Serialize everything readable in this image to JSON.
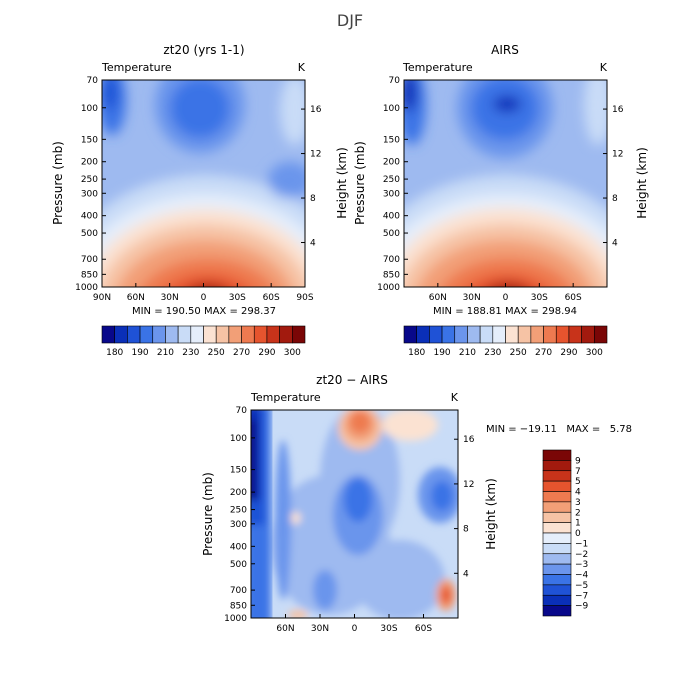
{
  "figure": {
    "title": "DJF"
  },
  "chart_data": [
    {
      "type": "heatmap",
      "id": "model",
      "title": "zt20 (yrs 1-1)",
      "subtitle_left": "Temperature",
      "subtitle_right": "K",
      "ylabel": "Pressure (mb)",
      "ylabel_right": "Height (km)",
      "x_ticks": [
        "90N",
        "60N",
        "30N",
        "0",
        "30S",
        "60S",
        "90S"
      ],
      "y_ticks": [
        "70",
        "100",
        "150",
        "200",
        "250",
        "300",
        "400",
        "500",
        "700",
        "850",
        "1000"
      ],
      "y_ticks_right": [
        "16",
        "12",
        "8",
        "4"
      ],
      "stats_text": "MIN = 190.50   MAX = 298.37",
      "min": 190.5,
      "max": 298.37,
      "colorbar_labels": [
        "180",
        "190",
        "210",
        "230",
        "250",
        "270",
        "290",
        "300"
      ]
    },
    {
      "type": "heatmap",
      "id": "obs",
      "title": "AIRS",
      "subtitle_left": "Temperature",
      "subtitle_right": "K",
      "ylabel": "Pressure (mb)",
      "ylabel_right": "Height (km)",
      "x_ticks": [
        "60N",
        "30N",
        "0",
        "30S",
        "60S"
      ],
      "y_ticks": [
        "70",
        "100",
        "150",
        "200",
        "250",
        "300",
        "400",
        "500",
        "700",
        "850",
        "1000"
      ],
      "y_ticks_right": [
        "16",
        "12",
        "8",
        "4"
      ],
      "stats_text": "MIN = 188.81   MAX = 298.94",
      "min": 188.81,
      "max": 298.94,
      "colorbar_labels": [
        "180",
        "190",
        "210",
        "230",
        "250",
        "270",
        "290",
        "300"
      ]
    },
    {
      "type": "heatmap",
      "id": "diff",
      "title": "zt20 − AIRS",
      "subtitle_left": "Temperature",
      "subtitle_right": "K",
      "ylabel": "Pressure (mb)",
      "ylabel_right": "Height (km)",
      "x_ticks": [
        "60N",
        "30N",
        "0",
        "30S",
        "60S"
      ],
      "y_ticks": [
        "70",
        "100",
        "150",
        "200",
        "250",
        "300",
        "400",
        "500",
        "700",
        "850",
        "1000"
      ],
      "y_ticks_right": [
        "16",
        "12",
        "8",
        "4"
      ],
      "stats_text": "MIN = −19.11   MAX =   5.78",
      "min": -19.11,
      "max": 5.78,
      "colorbar_labels": [
        "9",
        "7",
        "5",
        "4",
        "3",
        "2",
        "1",
        "0",
        "−1",
        "−2",
        "−3",
        "−4",
        "−5",
        "−7",
        "−9"
      ]
    }
  ],
  "colors": {
    "temperature_scale": [
      "#08088a",
      "#0a2fb8",
      "#1f52d6",
      "#3a73e6",
      "#6b95ec",
      "#9ebaf0",
      "#c9dcf7",
      "#e5eefb",
      "#fbe2d2",
      "#f6c3a5",
      "#f29f77",
      "#ee7a50",
      "#e6542e",
      "#c8331a",
      "#a21a0e",
      "#7a0606"
    ],
    "difference_scale": [
      "#7a0606",
      "#a21a0e",
      "#c8331a",
      "#e6542e",
      "#ee7a50",
      "#f29f77",
      "#f6c3a5",
      "#fbe2d2",
      "#e5eefb",
      "#c9dcf7",
      "#9ebaf0",
      "#6b95ec",
      "#3a73e6",
      "#1f52d6",
      "#0a2fb8",
      "#08088a"
    ]
  }
}
